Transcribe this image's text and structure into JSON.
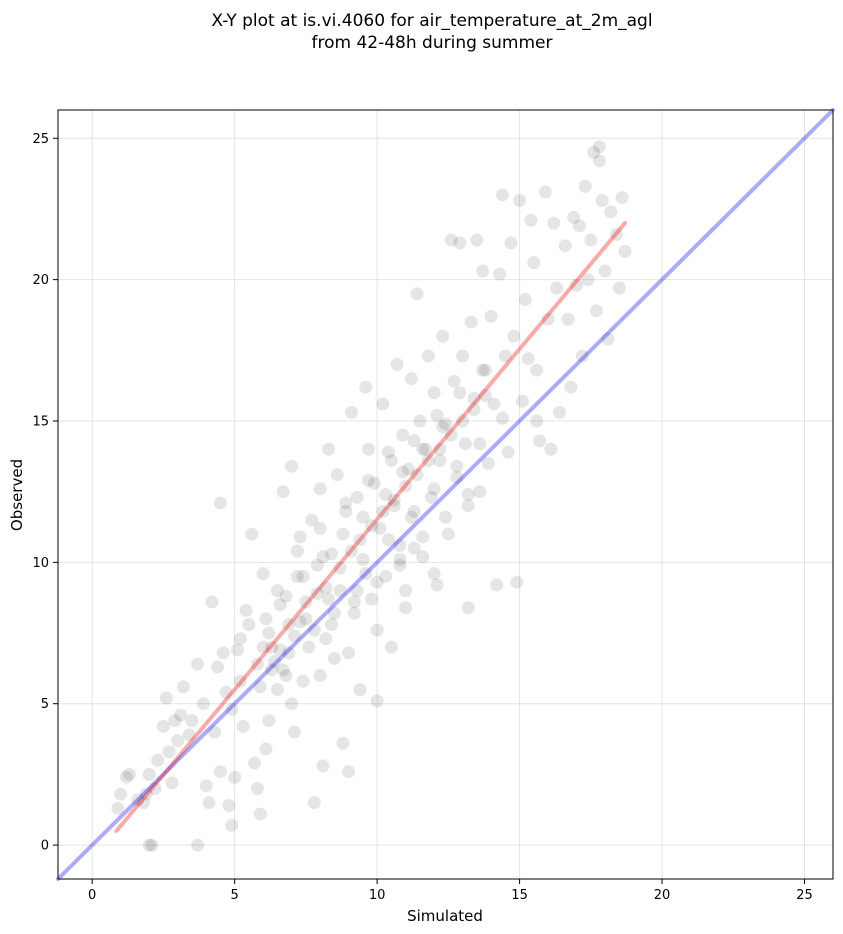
{
  "chart_data": {
    "type": "scatter",
    "title_line1": "X-Y plot at is.vi.4060 for air_temperature_at_2m_agl",
    "title_line2": "from 42-48h during summer",
    "xlabel": "Simulated",
    "ylabel": "Observed",
    "xlim": [
      -1.2,
      26
    ],
    "ylim": [
      -1.2,
      26
    ],
    "xticks": [
      0,
      5,
      10,
      15,
      20,
      25
    ],
    "yticks": [
      0,
      5,
      10,
      15,
      20,
      25
    ],
    "xtick_labels": [
      "0",
      "5",
      "10",
      "15",
      "20",
      "25"
    ],
    "ytick_labels": [
      "0",
      "5",
      "10",
      "15",
      "20",
      "25"
    ],
    "grid": true,
    "colors": {
      "points": "#000000",
      "identity_line": "#0000ee",
      "fit_line": "#ee0000"
    },
    "identity_line": {
      "x": [
        -1.2,
        26
      ],
      "y": [
        -1.2,
        26
      ]
    },
    "fit_line": {
      "x": [
        0.85,
        18.7
      ],
      "y": [
        0.5,
        22.0
      ]
    },
    "points": [
      [
        0.9,
        1.3
      ],
      [
        1.0,
        1.8
      ],
      [
        1.2,
        2.4
      ],
      [
        1.3,
        2.5
      ],
      [
        1.6,
        1.6
      ],
      [
        1.8,
        1.5
      ],
      [
        2.0,
        0.0
      ],
      [
        2.1,
        0.0
      ],
      [
        2.0,
        2.5
      ],
      [
        2.3,
        3.0
      ],
      [
        2.5,
        4.2
      ],
      [
        2.6,
        5.2
      ],
      [
        2.8,
        2.2
      ],
      [
        2.9,
        4.4
      ],
      [
        3.1,
        4.6
      ],
      [
        3.2,
        5.6
      ],
      [
        3.5,
        4.4
      ],
      [
        3.7,
        6.4
      ],
      [
        3.7,
        0.0
      ],
      [
        3.9,
        5.0
      ],
      [
        4.0,
        2.1
      ],
      [
        4.1,
        1.5
      ],
      [
        4.2,
        8.6
      ],
      [
        4.4,
        6.3
      ],
      [
        4.5,
        2.6
      ],
      [
        4.5,
        12.1
      ],
      [
        4.7,
        5.4
      ],
      [
        4.8,
        1.4
      ],
      [
        4.9,
        0.7
      ],
      [
        5.0,
        2.4
      ],
      [
        5.1,
        6.9
      ],
      [
        5.2,
        7.3
      ],
      [
        5.3,
        4.2
      ],
      [
        5.4,
        8.3
      ],
      [
        5.6,
        11.0
      ],
      [
        5.7,
        2.9
      ],
      [
        5.8,
        2.0
      ],
      [
        5.9,
        1.1
      ],
      [
        6.0,
        9.6
      ],
      [
        6.1,
        3.4
      ],
      [
        6.2,
        4.4
      ],
      [
        6.3,
        7.0
      ],
      [
        6.5,
        5.5
      ],
      [
        6.6,
        8.5
      ],
      [
        6.7,
        12.5
      ],
      [
        6.8,
        6.0
      ],
      [
        6.9,
        7.8
      ],
      [
        7.0,
        13.4
      ],
      [
        7.1,
        4.0
      ],
      [
        7.2,
        9.5
      ],
      [
        7.3,
        10.9
      ],
      [
        7.4,
        5.8
      ],
      [
        7.5,
        8.0
      ],
      [
        7.7,
        11.5
      ],
      [
        7.8,
        1.5
      ],
      [
        7.9,
        9.9
      ],
      [
        8.0,
        12.6
      ],
      [
        8.1,
        2.8
      ],
      [
        8.2,
        7.3
      ],
      [
        8.3,
        14.0
      ],
      [
        8.4,
        10.3
      ],
      [
        8.5,
        6.6
      ],
      [
        8.6,
        13.1
      ],
      [
        8.7,
        9.0
      ],
      [
        8.8,
        3.6
      ],
      [
        8.9,
        11.8
      ],
      [
        9.0,
        2.6
      ],
      [
        9.1,
        15.3
      ],
      [
        9.2,
        8.2
      ],
      [
        9.3,
        12.3
      ],
      [
        9.4,
        5.5
      ],
      [
        9.5,
        10.1
      ],
      [
        9.6,
        16.2
      ],
      [
        9.7,
        14.0
      ],
      [
        9.8,
        8.7
      ],
      [
        9.9,
        12.8
      ],
      [
        10.0,
        5.1
      ],
      [
        10.1,
        11.2
      ],
      [
        10.2,
        15.6
      ],
      [
        10.3,
        9.5
      ],
      [
        10.4,
        13.9
      ],
      [
        10.5,
        7.0
      ],
      [
        10.6,
        12.0
      ],
      [
        10.7,
        17.0
      ],
      [
        10.8,
        10.6
      ],
      [
        10.9,
        14.5
      ],
      [
        11.0,
        9.0
      ],
      [
        11.1,
        13.3
      ],
      [
        11.2,
        16.5
      ],
      [
        11.3,
        11.8
      ],
      [
        11.4,
        19.5
      ],
      [
        11.5,
        15.0
      ],
      [
        11.6,
        10.2
      ],
      [
        11.7,
        14.0
      ],
      [
        11.8,
        17.3
      ],
      [
        11.9,
        12.3
      ],
      [
        12.0,
        16.0
      ],
      [
        12.1,
        9.2
      ],
      [
        12.2,
        13.6
      ],
      [
        12.3,
        18.0
      ],
      [
        12.4,
        14.9
      ],
      [
        12.5,
        11.0
      ],
      [
        12.6,
        21.4
      ],
      [
        12.7,
        16.4
      ],
      [
        12.8,
        13.0
      ],
      [
        12.9,
        21.3
      ],
      [
        13.0,
        17.3
      ],
      [
        13.1,
        14.2
      ],
      [
        13.2,
        8.4
      ],
      [
        13.3,
        18.5
      ],
      [
        13.4,
        15.8
      ],
      [
        13.5,
        21.4
      ],
      [
        13.6,
        12.5
      ],
      [
        13.7,
        20.3
      ],
      [
        13.8,
        16.8
      ],
      [
        13.9,
        13.5
      ],
      [
        14.0,
        18.7
      ],
      [
        14.1,
        15.6
      ],
      [
        14.2,
        9.2
      ],
      [
        14.3,
        20.2
      ],
      [
        14.4,
        23.0
      ],
      [
        14.5,
        17.3
      ],
      [
        14.6,
        13.9
      ],
      [
        14.7,
        21.3
      ],
      [
        14.8,
        18.0
      ],
      [
        14.9,
        9.3
      ],
      [
        15.0,
        22.8
      ],
      [
        15.1,
        15.7
      ],
      [
        15.2,
        19.3
      ],
      [
        15.3,
        17.2
      ],
      [
        15.4,
        22.1
      ],
      [
        15.5,
        20.6
      ],
      [
        15.6,
        16.8
      ],
      [
        15.7,
        14.3
      ],
      [
        15.9,
        23.1
      ],
      [
        16.0,
        18.6
      ],
      [
        16.1,
        14.0
      ],
      [
        16.2,
        22.0
      ],
      [
        16.3,
        19.7
      ],
      [
        16.4,
        15.3
      ],
      [
        16.6,
        21.2
      ],
      [
        16.7,
        18.6
      ],
      [
        16.8,
        16.2
      ],
      [
        16.9,
        22.2
      ],
      [
        17.0,
        19.8
      ],
      [
        17.1,
        21.9
      ],
      [
        17.2,
        17.3
      ],
      [
        17.3,
        23.3
      ],
      [
        17.4,
        20.0
      ],
      [
        17.5,
        21.4
      ],
      [
        17.6,
        24.5
      ],
      [
        17.7,
        18.9
      ],
      [
        17.8,
        24.7
      ],
      [
        17.9,
        22.8
      ],
      [
        18.0,
        20.3
      ],
      [
        18.1,
        17.9
      ],
      [
        18.2,
        22.4
      ],
      [
        18.4,
        21.6
      ],
      [
        18.5,
        19.7
      ],
      [
        18.6,
        22.9
      ],
      [
        18.7,
        21.0
      ],
      [
        17.8,
        24.2
      ],
      [
        15.6,
        15.0
      ],
      [
        13.2,
        12.0
      ],
      [
        11.3,
        10.5
      ],
      [
        10.8,
        9.9
      ],
      [
        9.3,
        9.0
      ],
      [
        8.5,
        8.2
      ],
      [
        7.8,
        7.6
      ],
      [
        6.9,
        6.8
      ],
      [
        6.4,
        6.5
      ],
      [
        5.8,
        6.4
      ],
      [
        6.0,
        7.0
      ],
      [
        6.3,
        6.2
      ],
      [
        6.6,
        6.9
      ],
      [
        6.2,
        7.5
      ],
      [
        7.1,
        7.4
      ],
      [
        7.5,
        8.6
      ],
      [
        7.9,
        8.9
      ],
      [
        8.2,
        9.1
      ],
      [
        8.7,
        9.8
      ],
      [
        9.1,
        10.4
      ],
      [
        9.4,
        10.8
      ],
      [
        9.8,
        11.3
      ],
      [
        10.2,
        11.8
      ],
      [
        10.6,
        12.2
      ],
      [
        11.0,
        12.7
      ],
      [
        11.4,
        13.1
      ],
      [
        11.8,
        13.6
      ],
      [
        12.2,
        14.0
      ],
      [
        12.6,
        14.5
      ],
      [
        13.0,
        15.0
      ],
      [
        13.4,
        15.4
      ],
      [
        13.8,
        15.9
      ],
      [
        6.1,
        8.0
      ],
      [
        6.8,
        8.8
      ],
      [
        7.4,
        9.5
      ],
      [
        8.1,
        10.2
      ],
      [
        8.8,
        11.0
      ],
      [
        9.5,
        11.6
      ],
      [
        10.3,
        12.4
      ],
      [
        10.9,
        13.2
      ],
      [
        11.6,
        14.0
      ],
      [
        12.3,
        14.8
      ],
      [
        5.9,
        5.6
      ],
      [
        6.7,
        6.2
      ],
      [
        7.6,
        7.0
      ],
      [
        8.4,
        7.8
      ],
      [
        9.2,
        8.6
      ],
      [
        10.0,
        9.3
      ],
      [
        10.8,
        10.1
      ],
      [
        11.6,
        10.9
      ],
      [
        12.4,
        11.6
      ],
      [
        13.2,
        12.4
      ],
      [
        7.2,
        10.4
      ],
      [
        8.0,
        11.2
      ],
      [
        8.9,
        12.1
      ],
      [
        9.7,
        12.9
      ],
      [
        10.5,
        13.6
      ],
      [
        11.3,
        14.3
      ],
      [
        12.1,
        15.2
      ],
      [
        12.9,
        16.0
      ],
      [
        13.7,
        16.8
      ],
      [
        7.0,
        5.0
      ],
      [
        8.0,
        6.0
      ],
      [
        9.0,
        6.8
      ],
      [
        10.0,
        7.6
      ],
      [
        11.0,
        8.4
      ],
      [
        12.0,
        9.6
      ],
      [
        6.5,
        9.0
      ],
      [
        7.3,
        7.9
      ],
      [
        8.3,
        8.7
      ],
      [
        9.6,
        9.6
      ],
      [
        10.4,
        10.8
      ],
      [
        11.2,
        11.6
      ],
      [
        12.0,
        12.6
      ],
      [
        12.8,
        13.4
      ],
      [
        13.6,
        14.2
      ],
      [
        14.4,
        15.1
      ],
      [
        4.6,
        6.8
      ],
      [
        5.2,
        5.8
      ],
      [
        5.5,
        7.8
      ],
      [
        4.9,
        4.8
      ],
      [
        3.4,
        3.9
      ],
      [
        2.7,
        3.3
      ],
      [
        2.2,
        2.0
      ],
      [
        1.9,
        1.8
      ],
      [
        3.0,
        3.7
      ],
      [
        4.3,
        4.0
      ]
    ]
  }
}
